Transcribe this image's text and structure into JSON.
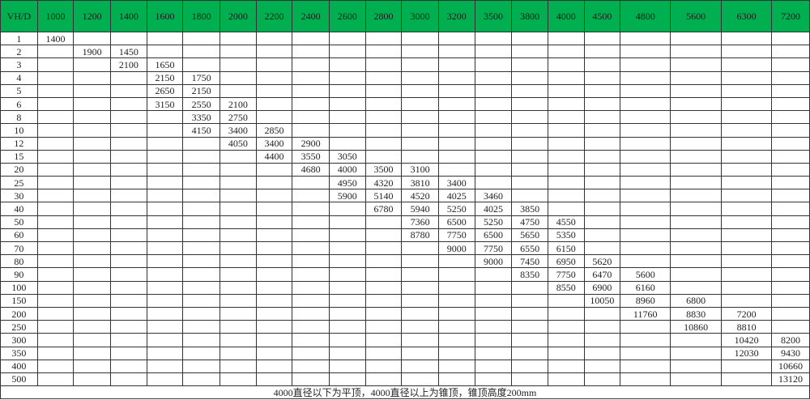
{
  "table": {
    "corner": "VH/D",
    "columns": [
      "1000",
      "1200",
      "1400",
      "1600",
      "1800",
      "2000",
      "2200",
      "2400",
      "2600",
      "2800",
      "3000",
      "3200",
      "3500",
      "3800",
      "4000",
      "4500",
      "4800",
      "5600",
      "6300",
      "7200"
    ],
    "rows": [
      {
        "label": "1",
        "cells": [
          "1400",
          "",
          "",
          "",
          "",
          "",
          "",
          "",
          "",
          "",
          "",
          "",
          "",
          "",
          "",
          "",
          "",
          "",
          "",
          ""
        ]
      },
      {
        "label": "2",
        "cells": [
          "",
          "1900",
          "1450",
          "",
          "",
          "",
          "",
          "",
          "",
          "",
          "",
          "",
          "",
          "",
          "",
          "",
          "",
          "",
          "",
          ""
        ]
      },
      {
        "label": "3",
        "cells": [
          "",
          "",
          "2100",
          "1650",
          "",
          "",
          "",
          "",
          "",
          "",
          "",
          "",
          "",
          "",
          "",
          "",
          "",
          "",
          "",
          ""
        ]
      },
      {
        "label": "4",
        "cells": [
          "",
          "",
          "",
          "2150",
          "1750",
          "",
          "",
          "",
          "",
          "",
          "",
          "",
          "",
          "",
          "",
          "",
          "",
          "",
          "",
          ""
        ]
      },
      {
        "label": "5",
        "cells": [
          "",
          "",
          "",
          "2650",
          "2150",
          "",
          "",
          "",
          "",
          "",
          "",
          "",
          "",
          "",
          "",
          "",
          "",
          "",
          "",
          ""
        ]
      },
      {
        "label": "6",
        "cells": [
          "",
          "",
          "",
          "3150",
          "2550",
          "2100",
          "",
          "",
          "",
          "",
          "",
          "",
          "",
          "",
          "",
          "",
          "",
          "",
          "",
          ""
        ]
      },
      {
        "label": "8",
        "cells": [
          "",
          "",
          "",
          "",
          "3350",
          "2750",
          "",
          "",
          "",
          "",
          "",
          "",
          "",
          "",
          "",
          "",
          "",
          "",
          "",
          ""
        ]
      },
      {
        "label": "10",
        "cells": [
          "",
          "",
          "",
          "",
          "4150",
          "3400",
          "2850",
          "",
          "",
          "",
          "",
          "",
          "",
          "",
          "",
          "",
          "",
          "",
          "",
          ""
        ]
      },
      {
        "label": "12",
        "cells": [
          "",
          "",
          "",
          "",
          "",
          "4050",
          "3400",
          "2900",
          "",
          "",
          "",
          "",
          "",
          "",
          "",
          "",
          "",
          "",
          "",
          ""
        ]
      },
      {
        "label": "15",
        "cells": [
          "",
          "",
          "",
          "",
          "",
          "",
          "4400",
          "3550",
          "3050",
          "",
          "",
          "",
          "",
          "",
          "",
          "",
          "",
          "",
          "",
          ""
        ]
      },
      {
        "label": "20",
        "cells": [
          "",
          "",
          "",
          "",
          "",
          "",
          "",
          "4680",
          "4000",
          "3500",
          "3100",
          "",
          "",
          "",
          "",
          "",
          "",
          "",
          "",
          ""
        ]
      },
      {
        "label": "25",
        "cells": [
          "",
          "",
          "",
          "",
          "",
          "",
          "",
          "",
          "4950",
          "4320",
          "3810",
          "3400",
          "",
          "",
          "",
          "",
          "",
          "",
          "",
          ""
        ]
      },
      {
        "label": "30",
        "cells": [
          "",
          "",
          "",
          "",
          "",
          "",
          "",
          "",
          "5900",
          "5140",
          "4520",
          "4025",
          "3460",
          "",
          "",
          "",
          "",
          "",
          "",
          ""
        ]
      },
      {
        "label": "40",
        "cells": [
          "",
          "",
          "",
          "",
          "",
          "",
          "",
          "",
          "",
          "6780",
          "5940",
          "5250",
          "4025",
          "3850",
          "",
          "",
          "",
          "",
          "",
          ""
        ]
      },
      {
        "label": "50",
        "cells": [
          "",
          "",
          "",
          "",
          "",
          "",
          "",
          "",
          "",
          "",
          "7360",
          "6500",
          "5250",
          "4750",
          "4550",
          "",
          "",
          "",
          "",
          ""
        ]
      },
      {
        "label": "60",
        "cells": [
          "",
          "",
          "",
          "",
          "",
          "",
          "",
          "",
          "",
          "",
          "8780",
          "7750",
          "6500",
          "5650",
          "5350",
          "",
          "",
          "",
          "",
          ""
        ]
      },
      {
        "label": "70",
        "cells": [
          "",
          "",
          "",
          "",
          "",
          "",
          "",
          "",
          "",
          "",
          "",
          "9000",
          "7750",
          "6550",
          "6150",
          "",
          "",
          "",
          "",
          ""
        ]
      },
      {
        "label": "80",
        "cells": [
          "",
          "",
          "",
          "",
          "",
          "",
          "",
          "",
          "",
          "",
          "",
          "",
          "9000",
          "7450",
          "6950",
          "5620",
          "",
          "",
          "",
          ""
        ]
      },
      {
        "label": "90",
        "cells": [
          "",
          "",
          "",
          "",
          "",
          "",
          "",
          "",
          "",
          "",
          "",
          "",
          "",
          "8350",
          "7750",
          "6470",
          "5600",
          "",
          "",
          ""
        ]
      },
      {
        "label": "100",
        "cells": [
          "",
          "",
          "",
          "",
          "",
          "",
          "",
          "",
          "",
          "",
          "",
          "",
          "",
          "",
          "8550",
          "6900",
          "6160",
          "",
          "",
          ""
        ]
      },
      {
        "label": "150",
        "cells": [
          "",
          "",
          "",
          "",
          "",
          "",
          "",
          "",
          "",
          "",
          "",
          "",
          "",
          "",
          "",
          "10050",
          "8960",
          "6800",
          "",
          ""
        ]
      },
      {
        "label": "200",
        "cells": [
          "",
          "",
          "",
          "",
          "",
          "",
          "",
          "",
          "",
          "",
          "",
          "",
          "",
          "",
          "",
          "",
          "11760",
          "8830",
          "7200",
          ""
        ]
      },
      {
        "label": "250",
        "cells": [
          "",
          "",
          "",
          "",
          "",
          "",
          "",
          "",
          "",
          "",
          "",
          "",
          "",
          "",
          "",
          "",
          "",
          "10860",
          "8810",
          ""
        ]
      },
      {
        "label": "300",
        "cells": [
          "",
          "",
          "",
          "",
          "",
          "",
          "",
          "",
          "",
          "",
          "",
          "",
          "",
          "",
          "",
          "",
          "",
          "",
          "10420",
          "8200"
        ]
      },
      {
        "label": "350",
        "cells": [
          "",
          "",
          "",
          "",
          "",
          "",
          "",
          "",
          "",
          "",
          "",
          "",
          "",
          "",
          "",
          "",
          "",
          "",
          "12030",
          "9430"
        ]
      },
      {
        "label": "400",
        "cells": [
          "",
          "",
          "",
          "",
          "",
          "",
          "",
          "",
          "",
          "",
          "",
          "",
          "",
          "",
          "",
          "",
          "",
          "",
          "",
          "10660"
        ]
      },
      {
        "label": "500",
        "cells": [
          "",
          "",
          "",
          "",
          "",
          "",
          "",
          "",
          "",
          "",
          "",
          "",
          "",
          "",
          "",
          "",
          "",
          "",
          "",
          "13120"
        ]
      }
    ],
    "footnote": "4000直径以下为平顶，4000直径以上为锥顶，锥顶高度200mm"
  },
  "colors": {
    "header_bg": "#00b050",
    "grid": "#333333"
  }
}
